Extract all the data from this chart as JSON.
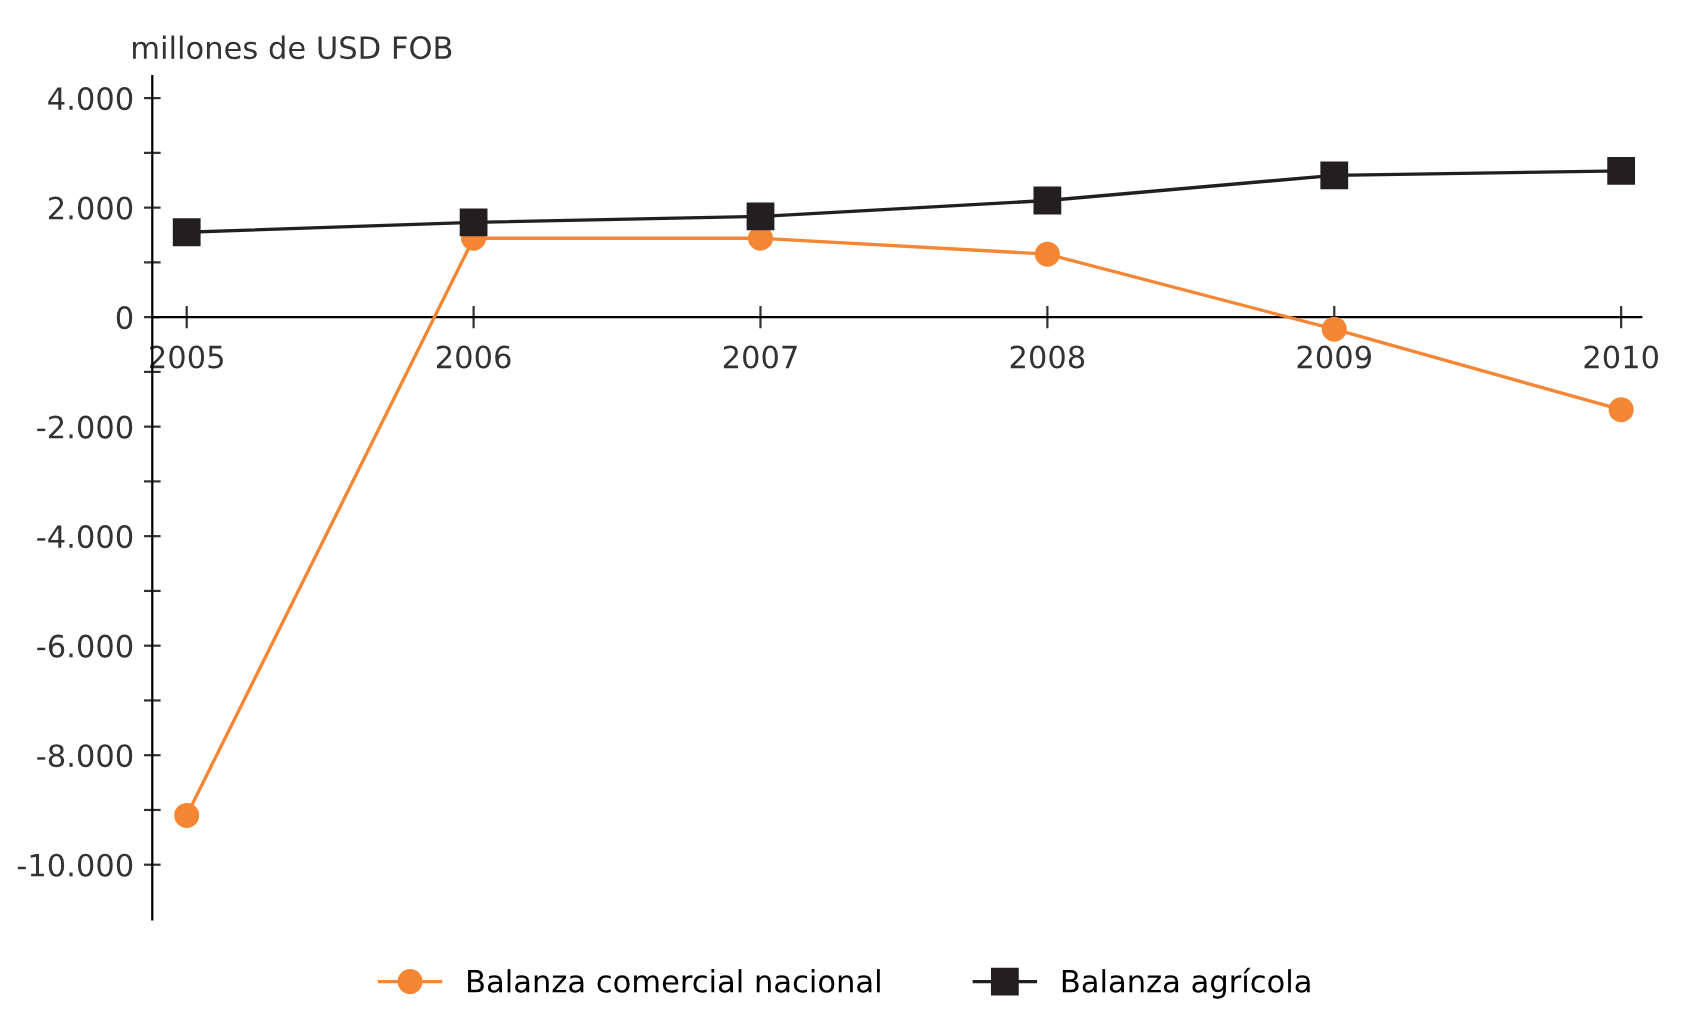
{
  "chart_data": {
    "type": "line",
    "ylabel": "millones de USD FOB",
    "categories": [
      "2005",
      "2006",
      "2007",
      "2008",
      "2009",
      "2010"
    ],
    "series": [
      {
        "name": "Balanza comercial nacional",
        "color": "#f58634",
        "marker": "circle",
        "values": [
          -9100,
          1440,
          1440,
          1150,
          -220,
          -1690
        ]
      },
      {
        "name": "Balanza agrícola",
        "color": "#231f20",
        "marker": "square",
        "values": [
          1550,
          1730,
          1840,
          2130,
          2590,
          2670
        ]
      }
    ],
    "ylim": [
      -11000,
      4400
    ],
    "yticks": [
      {
        "value": -10000,
        "label": "-10.000"
      },
      {
        "value": -9000,
        "label": null
      },
      {
        "value": -8000,
        "label": "-8.000"
      },
      {
        "value": -7000,
        "label": null
      },
      {
        "value": -6000,
        "label": "-6.000"
      },
      {
        "value": -5000,
        "label": null
      },
      {
        "value": -4000,
        "label": "-4.000"
      },
      {
        "value": -3000,
        "label": null
      },
      {
        "value": -2000,
        "label": "-2.000"
      },
      {
        "value": -1000,
        "label": null
      },
      0,
      {
        "value": 1000,
        "label": null
      },
      {
        "value": 2000,
        "label": "2.000"
      },
      {
        "value": 3000,
        "label": null
      },
      {
        "value": 4000,
        "label": "4.000"
      }
    ],
    "grid": false,
    "legend": "bottom",
    "line_style": "solid"
  }
}
